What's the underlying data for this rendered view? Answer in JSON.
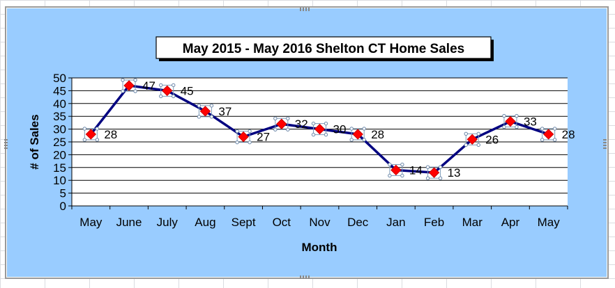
{
  "chart_data": {
    "type": "line",
    "title": "May  2015  -  May  2016  Shelton  CT  Home  Sales",
    "xlabel": "Month",
    "ylabel": "# of Sales",
    "categories": [
      "May",
      "June",
      "July",
      "Aug",
      "Sept",
      "Oct",
      "Nov",
      "Dec",
      "Jan",
      "Feb",
      "Mar",
      "Apr",
      "May"
    ],
    "values": [
      28,
      47,
      45,
      37,
      27,
      32,
      30,
      28,
      14,
      13,
      26,
      33,
      28
    ],
    "ylim": [
      0,
      50
    ],
    "yticks": [
      0,
      5,
      10,
      15,
      20,
      25,
      30,
      35,
      40,
      45,
      50
    ],
    "grid": true,
    "legend": "none",
    "colors": {
      "line": "#000080",
      "marker": "#ff0000",
      "chart_area": "#99ccff",
      "plot_area": "#ffffff"
    }
  }
}
